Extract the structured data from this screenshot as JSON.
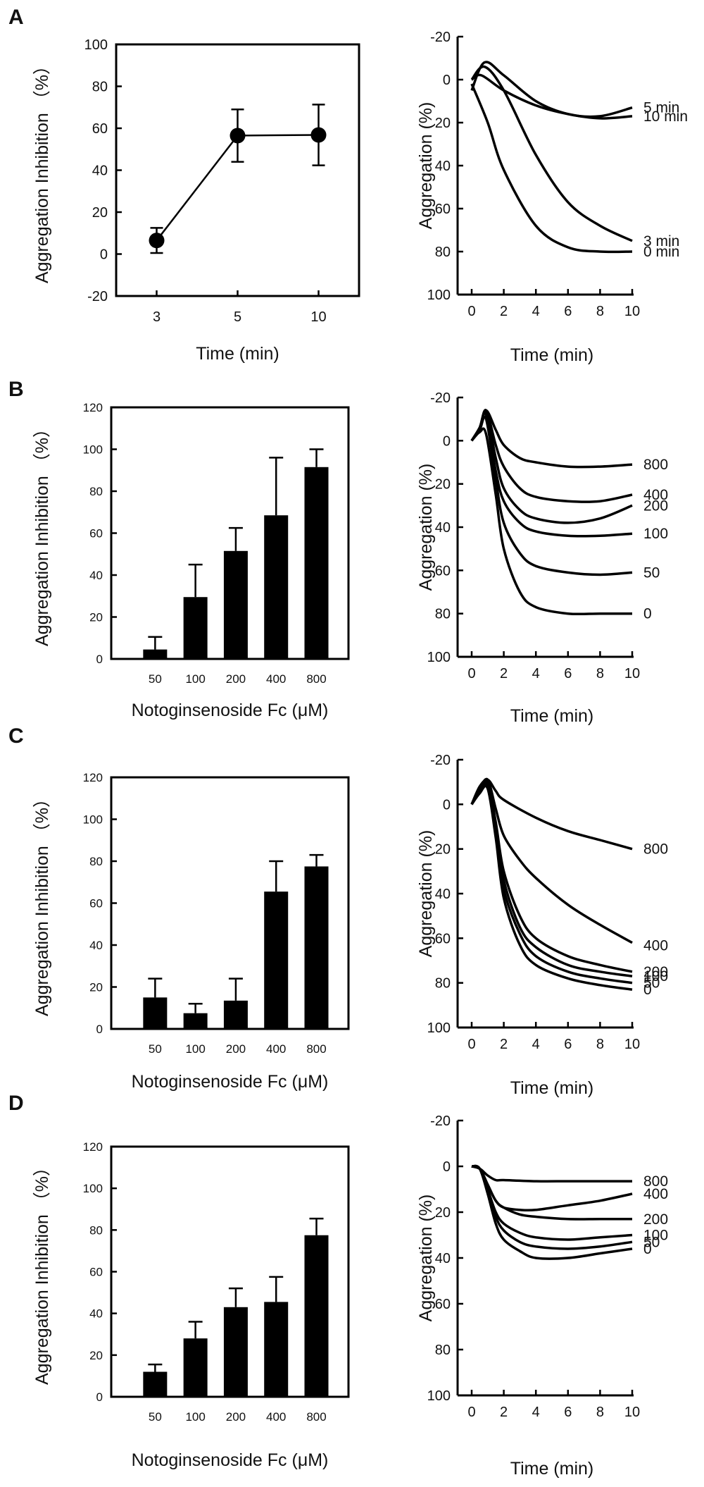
{
  "chart_data": [
    {
      "panel": "A",
      "type": "line",
      "categories": [
        "3",
        "5",
        "10"
      ],
      "values": [
        6.5,
        56.5,
        56.8
      ],
      "errors": [
        6,
        12.5,
        14.5
      ],
      "xlabel": "Time (min)",
      "ylabel": "Aggregation Inhibition （%）",
      "ylim": [
        -20,
        100
      ],
      "yticks": [
        "100",
        "80",
        "60",
        "40",
        "20",
        "0",
        "-20"
      ]
    },
    {
      "panel": "A",
      "type": "line",
      "xlabel": "Time (min)",
      "ylabel": "Aggregation (%)",
      "ylim": [
        -20,
        100
      ],
      "yticks": [
        "-20",
        "0",
        "20",
        "40",
        "60",
        "80",
        "100"
      ],
      "xticks": [
        "0",
        "2",
        "4",
        "6",
        "8",
        "10"
      ],
      "series": [
        {
          "name": "5 min",
          "x": [
            0,
            0.8,
            2,
            4,
            6,
            8,
            10
          ],
          "values": [
            5,
            -8,
            -2,
            10,
            16,
            17,
            13
          ]
        },
        {
          "name": "10 min",
          "x": [
            0,
            0.6,
            2,
            4,
            6,
            8,
            10
          ],
          "values": [
            0,
            -2,
            5,
            12,
            16,
            18,
            17
          ]
        },
        {
          "name": "3 min",
          "x": [
            0,
            0.8,
            2,
            4,
            6,
            8,
            10
          ],
          "values": [
            0,
            -6,
            5,
            35,
            57,
            68,
            75
          ]
        },
        {
          "name": "0 min",
          "x": [
            0,
            1,
            2,
            4,
            6,
            8,
            10
          ],
          "values": [
            2,
            20,
            42,
            68,
            78,
            80,
            80
          ]
        }
      ]
    },
    {
      "panel": "B",
      "type": "bar",
      "categories": [
        "50",
        "100",
        "200",
        "400",
        "800"
      ],
      "values": [
        4.5,
        29.5,
        51.5,
        68.5,
        91.5
      ],
      "errors": [
        6,
        15.5,
        11,
        27.5,
        8.5
      ],
      "xlabel": "Notoginsenoside Fc (μM)",
      "ylabel": "Aggregation Inhibition （%）",
      "ylim": [
        0,
        120
      ],
      "yticks": [
        "120",
        "100",
        "80",
        "60",
        "40",
        "20",
        "0"
      ]
    },
    {
      "panel": "B",
      "type": "line",
      "xlabel": "Time (min)",
      "ylabel": "Aggregation (%)",
      "ylim": [
        -20,
        100
      ],
      "yticks": [
        "-20",
        "0",
        "20",
        "40",
        "60",
        "80",
        "100"
      ],
      "xticks": [
        "0",
        "2",
        "4",
        "6",
        "8",
        "10"
      ],
      "series": [
        {
          "name": "800",
          "x": [
            0,
            0.5,
            0.9,
            1.5,
            2,
            3,
            4,
            6,
            8,
            10
          ],
          "values": [
            0,
            -6,
            -14,
            -5,
            2,
            8,
            10,
            12,
            12,
            11
          ]
        },
        {
          "name": "400",
          "x": [
            0,
            0.5,
            0.9,
            1.5,
            2,
            3,
            4,
            6,
            8,
            10
          ],
          "values": [
            0,
            -6,
            -14,
            2,
            12,
            22,
            26,
            28,
            28,
            25
          ]
        },
        {
          "name": "200",
          "x": [
            0,
            0.5,
            0.9,
            1.5,
            2,
            3,
            4,
            6,
            8,
            10
          ],
          "values": [
            0,
            -6,
            -13,
            8,
            22,
            32,
            36,
            38,
            36,
            30
          ]
        },
        {
          "name": "100",
          "x": [
            0,
            0.5,
            0.9,
            1.5,
            2,
            3,
            4,
            6,
            8,
            10
          ],
          "values": [
            0,
            -6,
            -12,
            14,
            28,
            38,
            42,
            44,
            44,
            43
          ]
        },
        {
          "name": "50",
          "x": [
            0,
            0.5,
            0.9,
            1.5,
            2,
            3,
            4,
            6,
            8,
            10
          ],
          "values": [
            0,
            -5,
            -10,
            18,
            38,
            52,
            58,
            61,
            62,
            61
          ]
        },
        {
          "name": "0",
          "x": [
            0,
            0.5,
            0.9,
            1.5,
            2,
            3,
            4,
            6,
            8,
            10
          ],
          "values": [
            0,
            -4,
            -3,
            25,
            50,
            70,
            77,
            80,
            80,
            80
          ]
        }
      ]
    },
    {
      "panel": "C",
      "type": "bar",
      "categories": [
        "50",
        "100",
        "200",
        "400",
        "800"
      ],
      "values": [
        15,
        7.5,
        13.5,
        65.5,
        77.5
      ],
      "errors": [
        9,
        4.5,
        10.5,
        14.5,
        5.5
      ],
      "xlabel": "Notoginsenoside Fc (μM)",
      "ylabel": "Aggregation Inhibition （%）",
      "ylim": [
        0,
        120
      ],
      "yticks": [
        "120",
        "100",
        "80",
        "60",
        "40",
        "20",
        "0"
      ]
    },
    {
      "panel": "C",
      "type": "line",
      "xlabel": "Time (min)",
      "ylabel": "Aggregation (%)",
      "ylim": [
        -20,
        100
      ],
      "yticks": [
        "-20",
        "0",
        "20",
        "40",
        "60",
        "80",
        "100"
      ],
      "xticks": [
        "0",
        "2",
        "4",
        "6",
        "8",
        "10"
      ],
      "series": [
        {
          "name": "800",
          "x": [
            0,
            0.5,
            1,
            1.5,
            2,
            4,
            6,
            8,
            10
          ],
          "values": [
            0,
            -8,
            -11,
            -6,
            -2,
            6,
            12,
            16,
            20
          ]
        },
        {
          "name": "400",
          "x": [
            0,
            0.5,
            1,
            1.5,
            2,
            3,
            4,
            6,
            8,
            10
          ],
          "values": [
            0,
            -7,
            -11,
            2,
            14,
            25,
            33,
            45,
            54,
            62
          ]
        },
        {
          "name": "200",
          "x": [
            0,
            0.5,
            1,
            1.5,
            2,
            3,
            4,
            6,
            8,
            10
          ],
          "values": [
            0,
            -6,
            -10,
            8,
            30,
            50,
            60,
            68,
            72,
            75
          ]
        },
        {
          "name": "100",
          "x": [
            0,
            0.5,
            1,
            1.5,
            2,
            3,
            4,
            6,
            8,
            10
          ],
          "values": [
            0,
            -6,
            -9,
            10,
            34,
            55,
            64,
            72,
            75,
            77
          ]
        },
        {
          "name": "50",
          "x": [
            0,
            0.5,
            1,
            1.5,
            2,
            3,
            4,
            6,
            8,
            10
          ],
          "values": [
            0,
            -5,
            -8,
            12,
            38,
            58,
            68,
            75,
            78,
            80
          ]
        },
        {
          "name": "0",
          "x": [
            0,
            0.5,
            1,
            1.5,
            2,
            3,
            4,
            6,
            8,
            10
          ],
          "values": [
            0,
            -5,
            -7,
            15,
            42,
            63,
            72,
            78,
            81,
            83
          ]
        }
      ]
    },
    {
      "panel": "D",
      "type": "bar",
      "categories": [
        "50",
        "100",
        "200",
        "400",
        "800"
      ],
      "values": [
        12,
        28,
        43,
        45.5,
        77.5
      ],
      "errors": [
        3.5,
        8,
        9,
        12,
        8
      ],
      "xlabel": "Notoginsenoside Fc (μM)",
      "ylabel": "Aggregation Inhibition （%）",
      "ylim": [
        0,
        120
      ],
      "yticks": [
        "120",
        "100",
        "80",
        "60",
        "40",
        "20",
        "0"
      ]
    },
    {
      "panel": "D",
      "type": "line",
      "xlabel": "Time (min)",
      "ylabel": "Aggregation (%)",
      "ylim": [
        -20,
        100
      ],
      "yticks": [
        "-20",
        "0",
        "20",
        "40",
        "60",
        "80",
        "100"
      ],
      "xticks": [
        "0",
        "2",
        "4",
        "6",
        "8",
        "10"
      ],
      "series": [
        {
          "name": "800",
          "x": [
            0,
            0.5,
            1,
            1.5,
            2,
            4,
            6,
            8,
            10
          ],
          "values": [
            0,
            1,
            4,
            6,
            6,
            6.5,
            6.5,
            6.5,
            6.5
          ]
        },
        {
          "name": "400",
          "x": [
            0,
            0.5,
            1,
            1.5,
            2,
            3,
            4,
            6,
            8,
            10
          ],
          "values": [
            0,
            1,
            8,
            15,
            18,
            19,
            19,
            17,
            15,
            12
          ]
        },
        {
          "name": "200",
          "x": [
            0,
            0.5,
            1,
            1.5,
            2,
            3,
            4,
            6,
            8,
            10
          ],
          "values": [
            0,
            1,
            8,
            15,
            18,
            21,
            22,
            23,
            23,
            23
          ]
        },
        {
          "name": "100",
          "x": [
            0,
            0.5,
            1,
            1.5,
            2,
            3,
            4,
            6,
            8,
            10
          ],
          "values": [
            0,
            1,
            10,
            20,
            25,
            29,
            31,
            32,
            31,
            30
          ]
        },
        {
          "name": "50",
          "x": [
            0,
            0.5,
            1,
            1.5,
            2,
            3,
            4,
            6,
            8,
            10
          ],
          "values": [
            0,
            1,
            11,
            22,
            28,
            33,
            35,
            36,
            35,
            33
          ]
        },
        {
          "name": "0",
          "x": [
            0,
            0.5,
            1,
            1.5,
            2,
            3,
            4,
            6,
            8,
            10
          ],
          "values": [
            0,
            1,
            12,
            25,
            32,
            37,
            40,
            40,
            38,
            36
          ]
        }
      ]
    }
  ],
  "panels": {
    "a": {
      "letter": "A"
    },
    "b": {
      "letter": "B"
    },
    "c": {
      "letter": "C"
    },
    "d": {
      "letter": "D"
    }
  }
}
